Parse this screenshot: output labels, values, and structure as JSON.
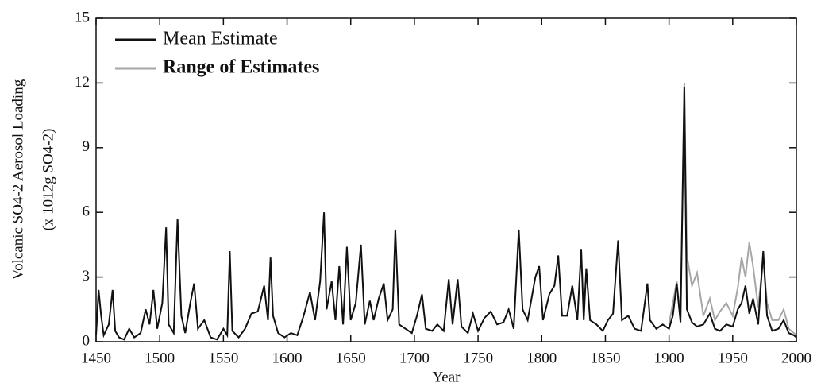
{
  "chart_data": {
    "type": "line",
    "x_label": "Year",
    "y_label": "Volcanic SO4-2 Aerosol Loading",
    "y_label_units": "(x 1012g SO4-2)",
    "xlim": [
      1450,
      2000
    ],
    "xticks": [
      1450,
      1500,
      1550,
      1600,
      1650,
      1700,
      1750,
      1800,
      1850,
      1900,
      1950,
      2000
    ],
    "ylim": [
      0,
      15
    ],
    "yticks": [
      0,
      3,
      6,
      9,
      12,
      15
    ],
    "legend": "upper left",
    "series": [
      {
        "name": "Range of Estimates",
        "color": "#a6a6a6",
        "x": [
          1900,
          1906,
          1909,
          1912,
          1914,
          1918,
          1922,
          1927,
          1932,
          1936,
          1940,
          1945,
          1950,
          1954,
          1957,
          1960,
          1963,
          1966,
          1970,
          1974,
          1977,
          1981,
          1986,
          1990,
          1994,
          1998,
          2000
        ],
        "values": [
          0.8,
          2.8,
          1.2,
          12.0,
          4.0,
          2.6,
          3.2,
          1.2,
          2.0,
          1.0,
          1.4,
          1.8,
          1.2,
          2.5,
          3.9,
          3.0,
          4.6,
          3.5,
          1.6,
          3.8,
          1.8,
          1.0,
          1.0,
          1.5,
          0.6,
          0.4,
          0.3
        ]
      },
      {
        "name": "Mean Estimate",
        "color": "#111111",
        "x": [
          1450,
          1452,
          1454,
          1456,
          1460,
          1463,
          1465,
          1468,
          1472,
          1476,
          1480,
          1485,
          1489,
          1492,
          1495,
          1498,
          1502,
          1505,
          1507,
          1511,
          1514,
          1517,
          1520,
          1524,
          1527,
          1530,
          1535,
          1540,
          1545,
          1550,
          1553,
          1555,
          1557,
          1562,
          1567,
          1572,
          1577,
          1582,
          1585,
          1587,
          1589,
          1593,
          1598,
          1603,
          1608,
          1613,
          1618,
          1622,
          1626,
          1629,
          1631,
          1635,
          1638,
          1641,
          1644,
          1647,
          1650,
          1654,
          1658,
          1661,
          1665,
          1668,
          1672,
          1676,
          1679,
          1683,
          1685,
          1688,
          1693,
          1698,
          1702,
          1706,
          1709,
          1714,
          1718,
          1723,
          1727,
          1730,
          1734,
          1737,
          1742,
          1746,
          1750,
          1755,
          1760,
          1765,
          1770,
          1774,
          1778,
          1782,
          1785,
          1789,
          1795,
          1798,
          1801,
          1806,
          1810,
          1813,
          1816,
          1820,
          1824,
          1828,
          1831,
          1833,
          1835,
          1838,
          1843,
          1848,
          1852,
          1856,
          1860,
          1863,
          1868,
          1873,
          1878,
          1883,
          1885,
          1890,
          1895,
          1900,
          1903,
          1906,
          1909,
          1912,
          1914,
          1918,
          1922,
          1927,
          1932,
          1936,
          1940,
          1945,
          1950,
          1954,
          1957,
          1960,
          1963,
          1966,
          1970,
          1974,
          1977,
          1981,
          1986,
          1990,
          1994,
          1998,
          2000
        ],
        "values": [
          0.3,
          2.4,
          1.2,
          0.3,
          0.8,
          2.4,
          0.5,
          0.2,
          0.1,
          0.6,
          0.2,
          0.4,
          1.5,
          0.8,
          2.4,
          0.6,
          1.8,
          5.3,
          0.8,
          0.4,
          5.7,
          1.2,
          0.4,
          1.8,
          2.7,
          0.6,
          1.0,
          0.2,
          0.1,
          0.6,
          0.3,
          4.2,
          0.5,
          0.2,
          0.6,
          1.3,
          1.4,
          2.6,
          1.0,
          3.9,
          1.2,
          0.4,
          0.2,
          0.4,
          0.3,
          1.2,
          2.3,
          1.0,
          2.8,
          6.0,
          1.5,
          2.8,
          1.0,
          3.5,
          0.8,
          4.4,
          1.0,
          1.8,
          4.5,
          0.8,
          1.9,
          1.0,
          2.0,
          2.7,
          1.0,
          1.5,
          5.2,
          0.8,
          0.6,
          0.4,
          1.2,
          2.2,
          0.6,
          0.5,
          0.8,
          0.5,
          2.9,
          0.8,
          2.9,
          0.7,
          0.4,
          1.3,
          0.5,
          1.1,
          1.4,
          0.8,
          0.9,
          1.5,
          0.6,
          5.2,
          1.5,
          1.0,
          3.0,
          3.5,
          1.0,
          2.2,
          2.6,
          4.0,
          1.2,
          1.2,
          2.6,
          1.0,
          4.3,
          1.0,
          3.4,
          1.0,
          0.8,
          0.5,
          1.0,
          1.3,
          4.7,
          1.0,
          1.2,
          0.6,
          0.5,
          2.7,
          1.0,
          0.6,
          0.8,
          0.6,
          1.2,
          2.7,
          0.9,
          11.8,
          1.5,
          0.9,
          0.7,
          0.8,
          1.3,
          0.6,
          0.5,
          0.8,
          0.7,
          1.5,
          1.8,
          2.6,
          1.3,
          2.0,
          0.8,
          4.2,
          1.2,
          0.5,
          0.6,
          1.0,
          0.4,
          0.3,
          0.2
        ]
      }
    ]
  }
}
